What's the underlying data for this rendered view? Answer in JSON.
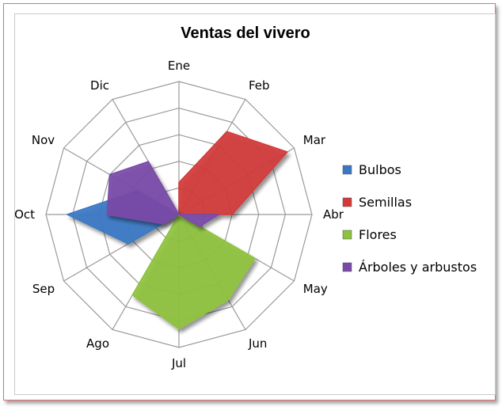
{
  "chart_data": {
    "type": "radar",
    "title": "Ventas del vivero",
    "categories": [
      "Ene",
      "Feb",
      "Mar",
      "Abr",
      "May",
      "Jun",
      "Jul",
      "Ago",
      "Sep",
      "Oct",
      "Nov",
      "Dic"
    ],
    "rings": 5,
    "grid": true,
    "legend_position": "right",
    "series": [
      {
        "name": "Bulbos",
        "color": "#3a78c4",
        "values": [
          0,
          0,
          0,
          0,
          0,
          0,
          0,
          0,
          2.2,
          4.2,
          1.8,
          0
        ]
      },
      {
        "name": "Semillas",
        "color": "#d23a3a",
        "values": [
          1.2,
          3.6,
          4.7,
          2.0,
          0,
          0,
          0,
          0,
          0,
          0,
          0,
          0
        ]
      },
      {
        "name": "Flores",
        "color": "#8ec23c",
        "values": [
          0,
          0,
          0,
          0,
          3.3,
          3.7,
          4.3,
          3.5,
          0,
          0,
          0,
          0
        ]
      },
      {
        "name": "Árboles y arbustos",
        "color": "#7a4aa8",
        "values": [
          0,
          0,
          0,
          1.5,
          0.9,
          0,
          0,
          0,
          0.7,
          2.7,
          3.0,
          2.3
        ]
      }
    ]
  }
}
